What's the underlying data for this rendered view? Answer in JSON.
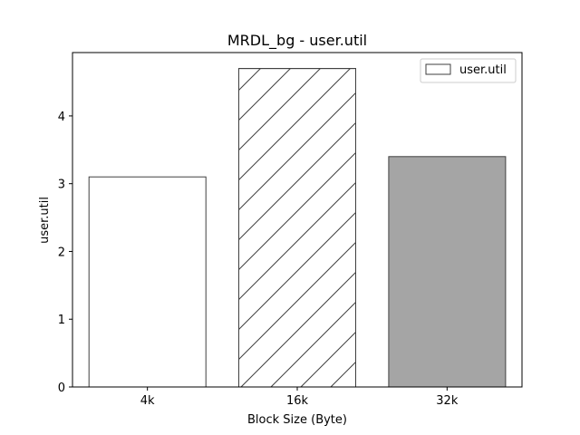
{
  "chart_data": {
    "type": "bar",
    "title": "MRDL_bg - user.util",
    "xlabel": "Block Size (Byte)",
    "ylabel": "user.util",
    "categories": [
      "4k",
      "16k",
      "32k"
    ],
    "series": [
      {
        "name": "user.util",
        "values": [
          3.1,
          4.7,
          3.4
        ]
      }
    ],
    "ylim": [
      0,
      4.935
    ],
    "yticks": [
      0,
      1,
      2,
      3,
      4
    ],
    "bar_styles": [
      {
        "fill": "#ffffff",
        "hatch": "none"
      },
      {
        "fill": "#ffffff",
        "hatch": "diagonal"
      },
      {
        "fill": "#a5a5a5",
        "hatch": "none"
      }
    ],
    "edge_color": "#3f3f3f",
    "grid": false,
    "legend": {
      "position": "top-right",
      "entries": [
        "user.util"
      ]
    }
  }
}
